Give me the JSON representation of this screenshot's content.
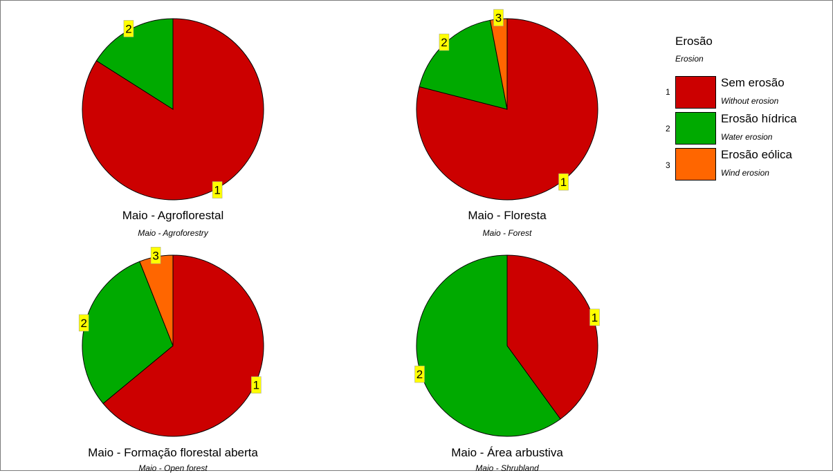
{
  "chart_data": {
    "type": "pie",
    "legend": {
      "title": "Erosão",
      "subtitle": "Erosion",
      "placement": "top-right",
      "items": [
        {
          "code": "1",
          "label": "Sem erosão",
          "label_en": "Without erosion",
          "color": "#cc0000"
        },
        {
          "code": "2",
          "label": "Erosão hídrica",
          "label_en": "Water erosion",
          "color": "#00aa00"
        },
        {
          "code": "3",
          "label": "Erosão eólica",
          "label_en": "Wind erosion",
          "color": "#ff6600"
        }
      ]
    },
    "charts": [
      {
        "title": "Maio - Agroflorestal",
        "subtitle": "Maio - Agroforestry",
        "slices": [
          {
            "code": "1",
            "value": 84
          },
          {
            "code": "2",
            "value": 16
          }
        ]
      },
      {
        "title": "Maio - Floresta",
        "subtitle": "Maio - Forest",
        "slices": [
          {
            "code": "1",
            "value": 79
          },
          {
            "code": "2",
            "value": 18
          },
          {
            "code": "3",
            "value": 3
          }
        ]
      },
      {
        "title": "Maio - Formação florestal aberta",
        "subtitle": "Maio - Open forest",
        "slices": [
          {
            "code": "1",
            "value": 64
          },
          {
            "code": "2",
            "value": 30
          },
          {
            "code": "3",
            "value": 6
          }
        ]
      },
      {
        "title": "Maio - Área arbustiva",
        "subtitle": "Maio - Shrubland",
        "slices": [
          {
            "code": "1",
            "value": 40
          },
          {
            "code": "2",
            "value": 60
          }
        ]
      }
    ],
    "label_box_color": "#ffff00"
  }
}
